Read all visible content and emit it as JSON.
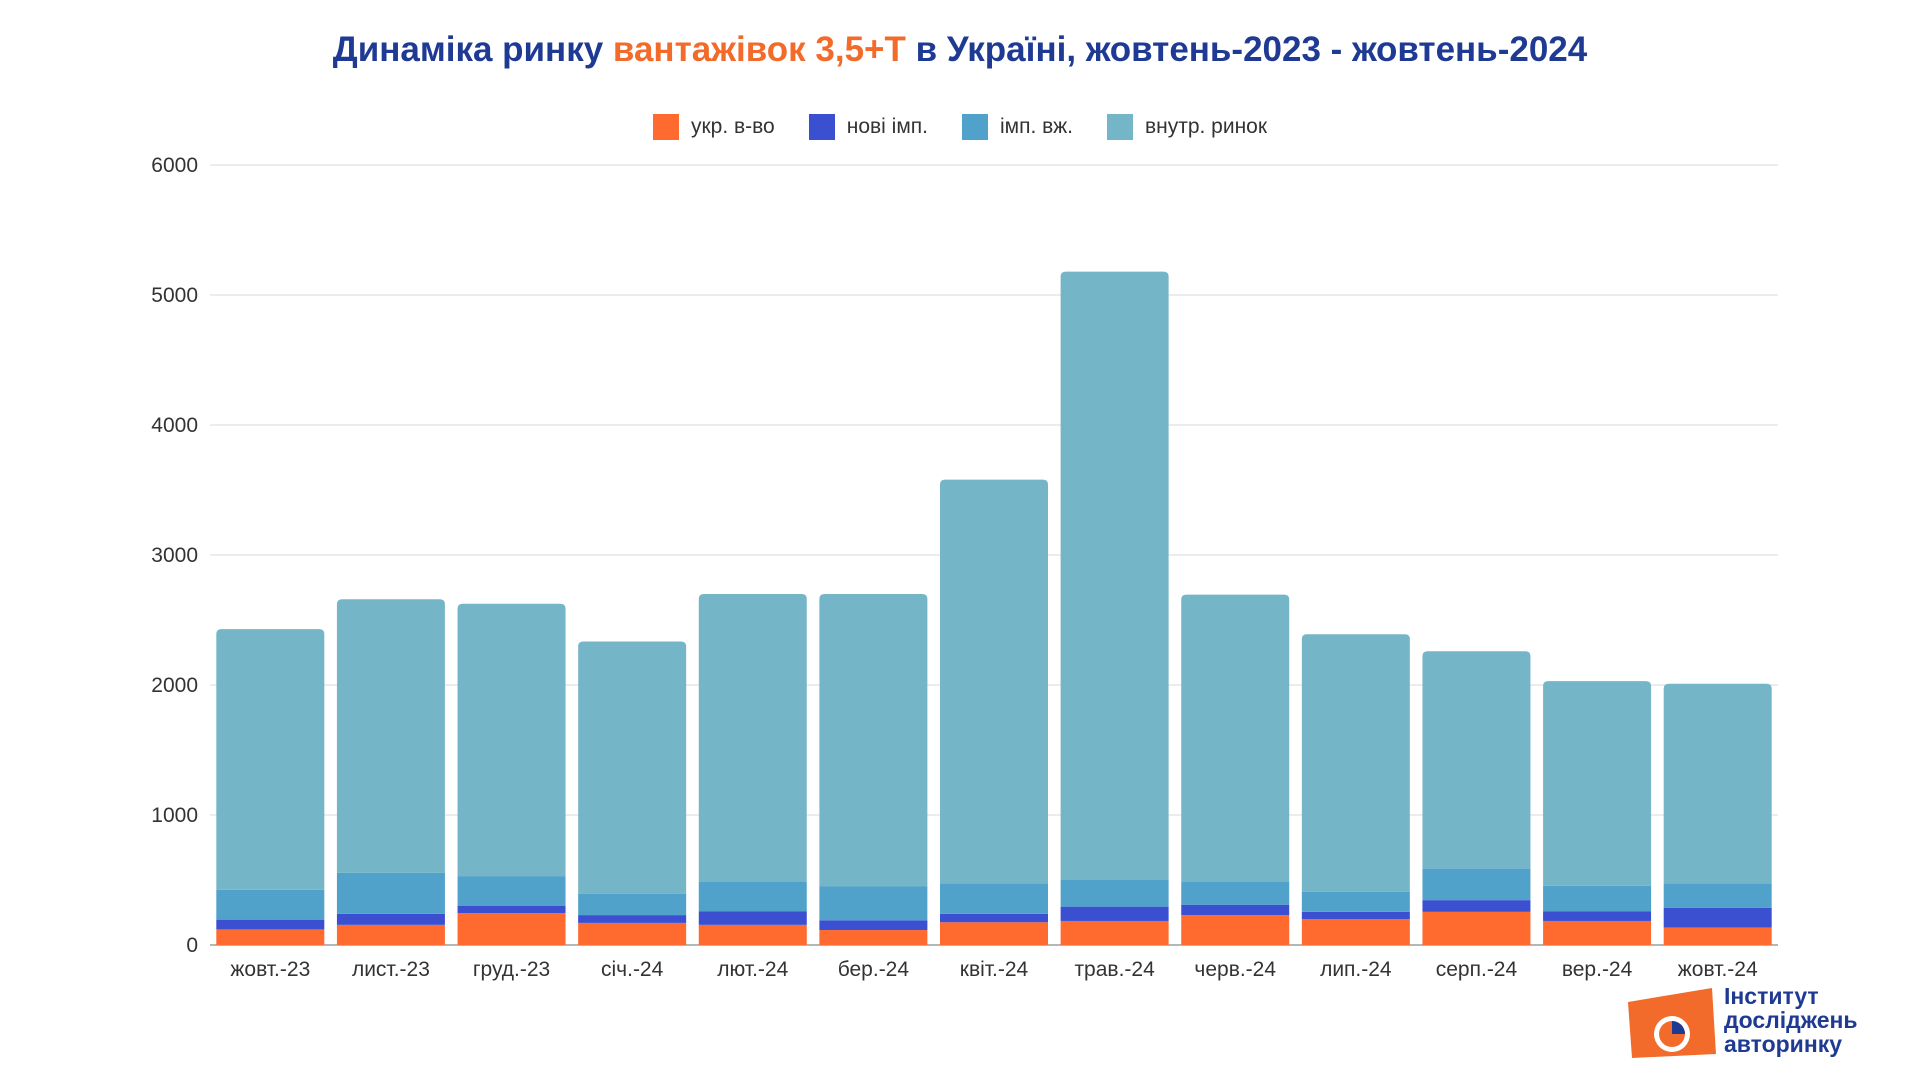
{
  "title": {
    "part1": "Динаміка ринку ",
    "part2": "вантажівок 3,5+Т",
    "part3": " в Україні, жовтень-2023 - жовтень-2024"
  },
  "logo": {
    "line1": "Інститут",
    "line2": "досліджень",
    "line3": "авторинку"
  },
  "colors": {
    "title": "#1f3a93",
    "title_highlight": "#f26b2a",
    "grid": "#d9d9d9"
  },
  "chart_data": {
    "type": "bar",
    "stacked": true,
    "categories": [
      "жовт.-23",
      "лист.-23",
      "груд.-23",
      "січ.-24",
      "лют.-24",
      "бер.-24",
      "квіт.-24",
      "трав.-24",
      "черв.-24",
      "лип.-24",
      "серп.-24",
      "вер.-24",
      "жовт.-24"
    ],
    "ylim": [
      0,
      6000
    ],
    "yticks": [
      0,
      1000,
      2000,
      3000,
      4000,
      5000,
      6000
    ],
    "grid": true,
    "legend_position": "top",
    "series": [
      {
        "name": "укр. в-во",
        "color": "#ff6b2f",
        "values": [
          120,
          155,
          245,
          170,
          155,
          115,
          175,
          185,
          230,
          200,
          255,
          185,
          135
        ]
      },
      {
        "name": "нові імп.",
        "color": "#3b4fd1",
        "values": [
          75,
          85,
          55,
          60,
          105,
          75,
          65,
          110,
          80,
          55,
          90,
          75,
          150
        ]
      },
      {
        "name": "імп. вж.",
        "color": "#51a2cb",
        "values": [
          230,
          315,
          230,
          165,
          225,
          260,
          235,
          205,
          175,
          155,
          245,
          195,
          190
        ]
      },
      {
        "name": "внутр. ринок",
        "color": "#75b5c8",
        "values": [
          2005,
          2105,
          2095,
          1940,
          2215,
          2250,
          3105,
          4680,
          2210,
          1980,
          1670,
          1575,
          1535
        ]
      }
    ]
  }
}
